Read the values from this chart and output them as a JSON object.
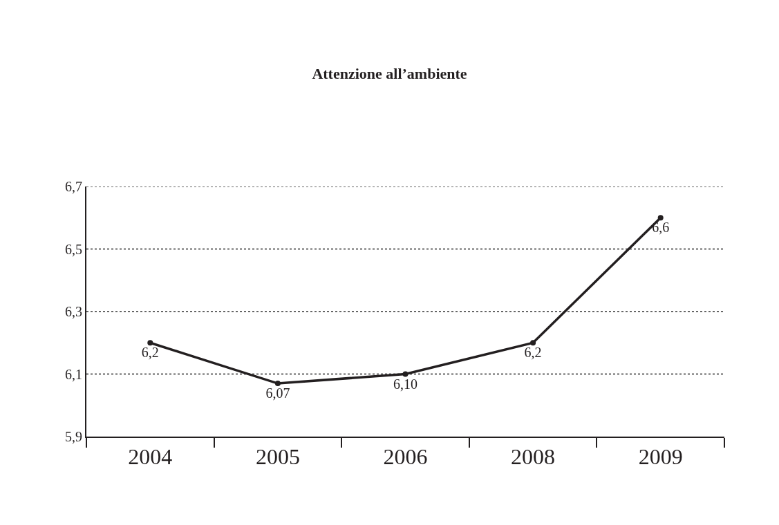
{
  "chart_data": {
    "type": "line",
    "title": "Attenzione all’ambiente",
    "categories": [
      "2004",
      "2005",
      "2006",
      "2008",
      "2009"
    ],
    "series": [
      {
        "color": "#231f20",
        "values": [
          6.2,
          6.07,
          6.1,
          6.2,
          6.6
        ],
        "value_labels": [
          "6,2",
          "6,07",
          "6,10",
          "6,2",
          "6,6"
        ]
      }
    ],
    "ylim": [
      5.9,
      6.7
    ],
    "yticks": [
      {
        "value": 5.9,
        "label": "5,9"
      },
      {
        "value": 6.1,
        "label": "6,1"
      },
      {
        "value": 6.3,
        "label": "6,3"
      },
      {
        "value": 6.5,
        "label": "6,5"
      },
      {
        "value": 6.7,
        "label": "6,7"
      }
    ],
    "grid": "y",
    "marker": "circle",
    "line_style": "solid"
  }
}
